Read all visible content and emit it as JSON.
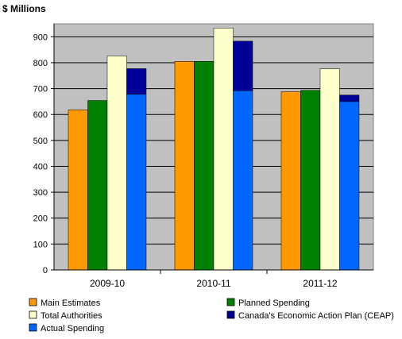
{
  "chart_data": {
    "type": "bar",
    "title": "",
    "ylabel": "$ Millions",
    "xlabel": "",
    "ylim": [
      0,
      950
    ],
    "yticks": [
      0,
      100,
      200,
      300,
      400,
      500,
      600,
      700,
      800,
      900
    ],
    "grid": "horizontal",
    "plot_background": "#c0c0c0",
    "legend_position": "bottom",
    "categories": [
      "2009-10",
      "2010-11",
      "2011-12"
    ],
    "series": [
      {
        "name": "Main Estimates",
        "color": "#ff9900",
        "values": [
          618,
          805,
          688
        ]
      },
      {
        "name": "Planned Spending",
        "color": "#008000",
        "values": [
          654,
          805,
          693
        ]
      },
      {
        "name": "Total Authorities",
        "color": "#ffffcc",
        "values": [
          826,
          934,
          776
        ]
      }
    ],
    "stacked_series": {
      "bottom": {
        "name": "Actual Spending",
        "color": "#0066ff",
        "values": [
          678,
          692,
          650
        ]
      },
      "top": {
        "name": "Canada's Economic Action Plan (CEAP)",
        "color": "#000099",
        "values": [
          99,
          191,
          25
        ]
      }
    },
    "legend": [
      {
        "label": "Main Estimates",
        "color": "#ff9900"
      },
      {
        "label": "Planned Spending",
        "color": "#008000"
      },
      {
        "label": "Total Authorities",
        "color": "#ffffcc"
      },
      {
        "label": "Canada's Economic Action Plan (CEAP)",
        "color": "#000099"
      },
      {
        "label": "Actual Spending",
        "color": "#0066ff"
      }
    ]
  }
}
